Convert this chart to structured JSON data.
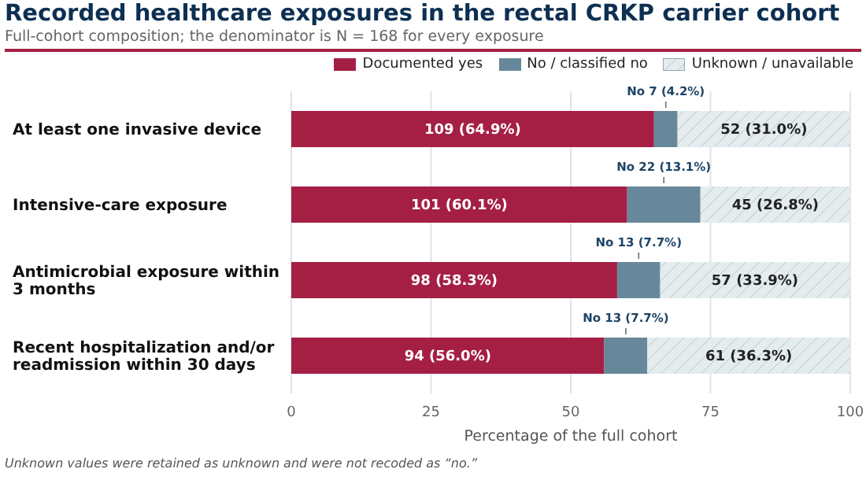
{
  "chart_data": {
    "type": "bar",
    "orientation": "horizontal",
    "stacked": true,
    "title": "Recorded healthcare exposures in the rectal CRKP carrier cohort",
    "subtitle": "Full-cohort composition; the denominator is N = 168 for every exposure",
    "xlabel": "Percentage of the full cohort",
    "categories": [
      "At least one invasive device",
      "Intensive-care exposure",
      "Antimicrobial exposure within 3 months",
      "Recent hospitalization and/or readmission within 30 days"
    ],
    "series": [
      {
        "name": "Documented yes",
        "color": "#a51f45",
        "values": [
          64.9,
          60.1,
          58.3,
          56.0
        ],
        "value_labels": [
          "109  (64.9%)",
          "101  (60.1%)",
          "98  (58.3%)",
          "94  (56.0%)"
        ]
      },
      {
        "name": "No / classified no",
        "color": "#66889a",
        "values": [
          4.2,
          13.1,
          7.7,
          7.7
        ],
        "value_labels": [
          "No 7 (4.2%)",
          "No 22 (13.1%)",
          "No 13 (7.7%)",
          "No 13 (7.7%)"
        ]
      },
      {
        "name": "Unknown / unavailable",
        "color": "#e4ecee",
        "values": [
          31.0,
          26.8,
          33.9,
          36.3
        ],
        "value_labels": [
          "52  (31.0%)",
          "45  (26.8%)",
          "57  (33.9%)",
          "61  (36.3%)"
        ]
      }
    ],
    "xlim": [
      0,
      100
    ],
    "xticks": [
      0,
      25,
      50,
      75,
      100
    ],
    "grid": "x",
    "legend": "top right",
    "annotations": [
      "Unknown values were retained as unknown and were not recoded as “no.”"
    ]
  }
}
